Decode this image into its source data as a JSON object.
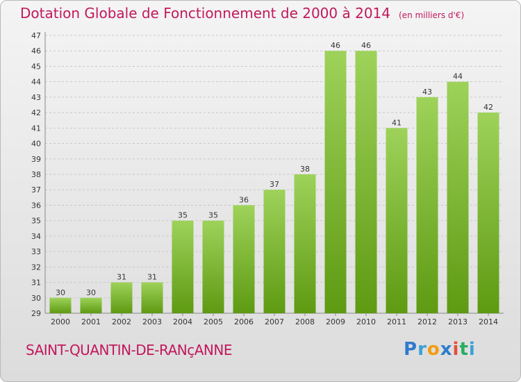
{
  "header": {
    "title": "Dotation Globale de Fonctionnement de 2000 à 2014",
    "subtitle": "(en milliers d'€)"
  },
  "footer": {
    "commune": "SAINT-QUANTIN-DE-RANçANNE",
    "logo": {
      "letters": [
        "P",
        "r",
        "o",
        "x",
        "i",
        "t",
        "i"
      ],
      "colors": [
        "#2e7bcf",
        "#3aa0d8",
        "#f39c12",
        "#2e7bcf",
        "#e74c3c",
        "#27ae60",
        "#3aa0d8"
      ]
    }
  },
  "colors": {
    "bar_top": "#9ed25a",
    "bar_bottom": "#5e9a12",
    "grid": "#c8c8c8"
  },
  "chart_data": {
    "type": "bar",
    "title": "Dotation Globale de Fonctionnement de 2000 à 2014",
    "subtitle": "(en milliers d'€)",
    "categories": [
      "2000",
      "2001",
      "2002",
      "2003",
      "2004",
      "2005",
      "2006",
      "2007",
      "2008",
      "2009",
      "2010",
      "2011",
      "2012",
      "2013",
      "2014"
    ],
    "values": [
      30,
      30,
      31,
      31,
      35,
      35,
      36,
      37,
      38,
      46,
      46,
      41,
      43,
      44,
      42
    ],
    "ylim": [
      29,
      47
    ],
    "yticks": [
      29,
      30,
      31,
      32,
      33,
      34,
      35,
      36,
      37,
      38,
      39,
      40,
      41,
      42,
      43,
      44,
      45,
      46,
      47
    ],
    "grid": true,
    "xlabel": "",
    "ylabel": ""
  }
}
